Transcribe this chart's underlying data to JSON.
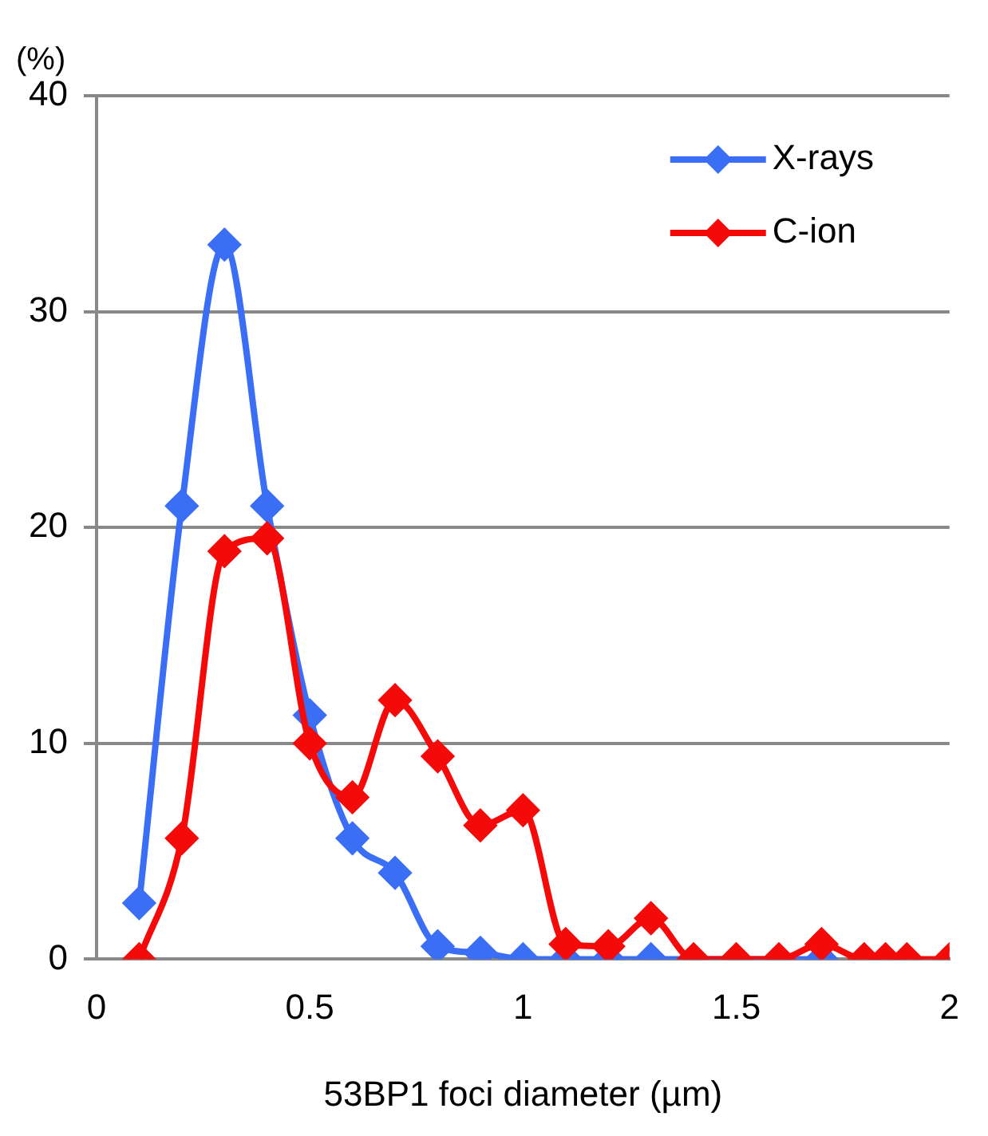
{
  "chart_data": {
    "type": "line",
    "xlabel": "53BP1 foci diameter (µm)",
    "ylabel": "(%)",
    "xlim": [
      0,
      2
    ],
    "xticks": [
      0,
      0.5,
      1,
      1.5,
      2
    ],
    "ylim": [
      0,
      40
    ],
    "yticks": [
      0,
      10,
      20,
      30,
      40
    ],
    "grid": "y",
    "legend": "top right",
    "marker": "diamond",
    "line_style": "solid",
    "series": [
      {
        "name": "X-rays",
        "color": "#3a6ef5",
        "x": [
          0.1,
          0.2,
          0.3,
          0.4,
          0.5,
          0.6,
          0.7,
          0.8,
          0.9,
          1.0,
          1.1,
          1.2,
          1.3,
          1.7
        ],
        "values": [
          2.6,
          21,
          33.1,
          21,
          11.3,
          5.6,
          4,
          0.6,
          0.3,
          0,
          0,
          0,
          0,
          0
        ]
      },
      {
        "name": "C-ion",
        "color": "#f50a0a",
        "x": [
          0.1,
          0.2,
          0.3,
          0.4,
          0.5,
          0.6,
          0.7,
          0.8,
          0.9,
          1.0,
          1.1,
          1.2,
          1.3,
          1.4,
          1.5,
          1.6,
          1.7,
          1.8,
          1.85,
          1.9,
          2.0
        ],
        "values": [
          0,
          5.6,
          18.9,
          19.5,
          10,
          7.5,
          12,
          9.4,
          6.2,
          6.9,
          0.7,
          0.6,
          1.9,
          0,
          0,
          0,
          0.7,
          0,
          0,
          0,
          0
        ]
      }
    ]
  }
}
